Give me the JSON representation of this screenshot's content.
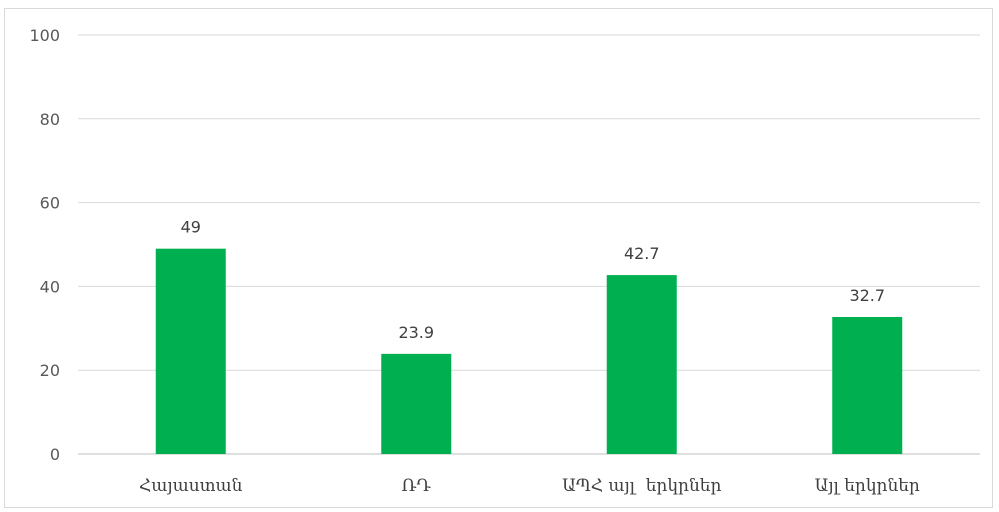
{
  "chart_data": {
    "type": "bar",
    "title": "",
    "xlabel": "",
    "ylabel": "",
    "categories": [
      "Հայաստան",
      "ՌԴ",
      "ԱՊՀ այլ  երկրներ",
      "Այլ երկրներ"
    ],
    "series": [
      {
        "values": [
          49,
          23.9,
          42.7,
          32.7
        ],
        "color": "#00b050"
      }
    ],
    "data_labels": [
      "49",
      "23.9",
      "42.7",
      "32.7"
    ],
    "ylim": [
      0,
      100
    ],
    "yticks": [
      0,
      20,
      40,
      60,
      80,
      100
    ],
    "ytick_labels": [
      "0",
      "20",
      "40",
      "60",
      "80",
      "100"
    ],
    "grid": true,
    "legend": "none"
  }
}
